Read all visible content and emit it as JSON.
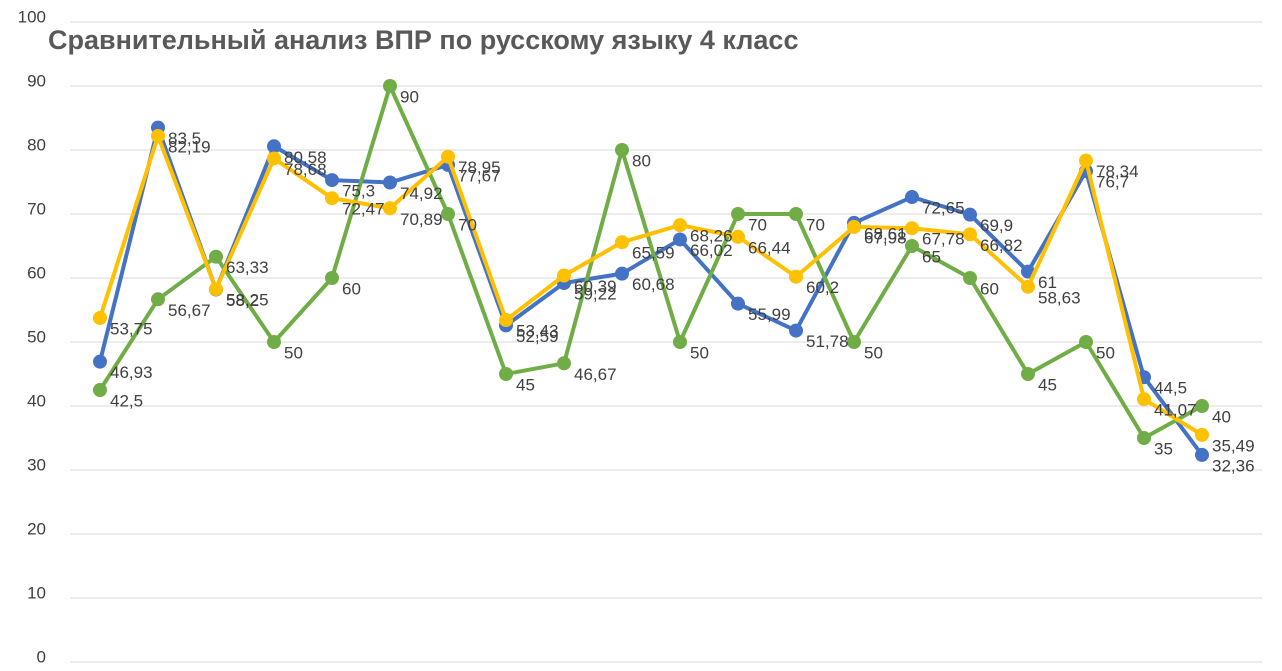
{
  "chart_data": {
    "type": "line",
    "title": "Сравнительный анализ ВПР по русскому языку 4 класс",
    "ylim": [
      0,
      100
    ],
    "yticks": [
      0,
      10,
      20,
      30,
      40,
      50,
      60,
      70,
      80,
      90,
      100
    ],
    "grid": true,
    "series": [
      {
        "color": "#4472c4",
        "values": [
          46.93,
          83.5,
          58.2,
          80.58,
          75.3,
          74.92,
          77.67,
          52.59,
          59.22,
          60.68,
          66.02,
          55.99,
          51.78,
          68.61,
          72.65,
          69.9,
          61,
          76.7,
          44.5,
          32.36
        ],
        "value_labels": [
          "46,93",
          "83,5",
          "58,2",
          "80,58",
          "75,3",
          "74,92",
          "77,67",
          "52,59",
          "59,22",
          "60,68",
          "66,02",
          "55,99",
          "51,78",
          "68,61",
          "72,65",
          "69,9",
          "61",
          "76,7",
          "44,5",
          "32,36"
        ]
      },
      {
        "color": "#70ad47",
        "values": [
          42.5,
          56.67,
          63.33,
          50,
          60,
          90,
          70,
          45,
          46.67,
          80,
          50,
          70,
          70,
          50,
          65,
          60,
          45,
          50,
          35,
          40
        ],
        "value_labels": [
          "42,5",
          "56,67",
          "63,33",
          "50",
          "60",
          "90",
          "70",
          "45",
          "46,67",
          "80",
          "50",
          "70",
          "70",
          "50",
          "65",
          "60",
          "45",
          "50",
          "35",
          "40"
        ]
      },
      {
        "color": "#ffc000",
        "values": [
          53.75,
          82.19,
          58.25,
          78.68,
          72.47,
          70.89,
          78.95,
          53.43,
          60.39,
          65.59,
          68.26,
          66.44,
          60.2,
          67.98,
          67.78,
          66.82,
          58.63,
          78.34,
          41.07,
          35.49
        ],
        "value_labels": [
          "53,75",
          "82,19",
          "58,25",
          "78,68",
          "72,47",
          "70,89",
          "78,95",
          "53,43",
          "60,39",
          "65,59",
          "68,26",
          "66,44",
          "60,2",
          "67,98",
          "67,78",
          "66,82",
          "58,63",
          "78,34",
          "41,07",
          "35,49"
        ]
      }
    ]
  }
}
